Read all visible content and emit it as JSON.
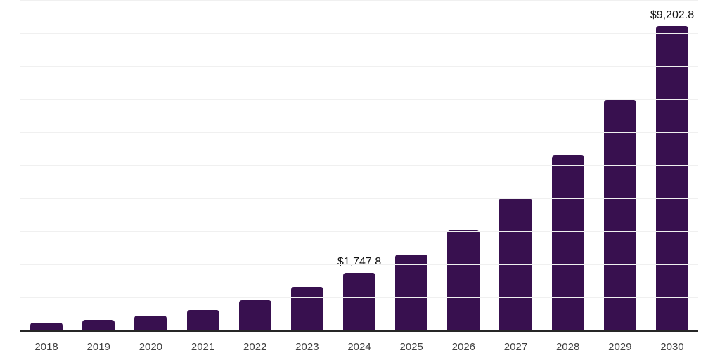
{
  "chart_data": {
    "type": "bar",
    "title": "",
    "xlabel": "",
    "ylabel": "",
    "categories": [
      "2018",
      "2019",
      "2020",
      "2021",
      "2022",
      "2023",
      "2024",
      "2025",
      "2026",
      "2027",
      "2028",
      "2029",
      "2030"
    ],
    "values": [
      240,
      315,
      450,
      610,
      905,
      1310,
      1747.8,
      2305.4,
      3040.9,
      4011.0,
      5290.7,
      6978.6,
      9202.8
    ],
    "data_labels": [
      {
        "category": "2024",
        "text": "$1,747.8"
      },
      {
        "category": "2030",
        "text": "$9,202.8"
      }
    ],
    "ylim": [
      0,
      10000
    ],
    "gridline_step": 1000,
    "grid": true,
    "legend": false
  },
  "style": {
    "bar_color": "#38104F",
    "grid_color": "#f0f0f0",
    "axis_color": "#262626",
    "value_label_color": "#111111",
    "tick_label_color": "#3f3f3f",
    "background": "#ffffff"
  }
}
